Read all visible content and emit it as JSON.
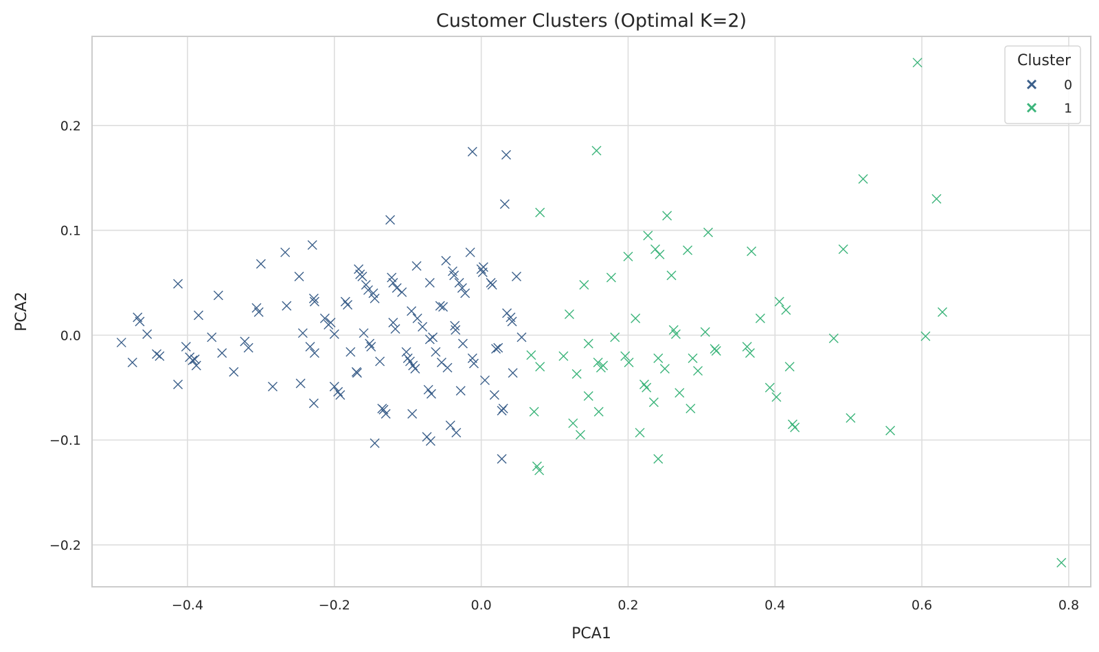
{
  "chart_data": {
    "type": "scatter",
    "title": "Customer Clusters (Optimal K=2)",
    "xlabel": "PCA1",
    "ylabel": "PCA2",
    "xlim": [
      -0.53,
      0.83
    ],
    "ylim": [
      -0.24,
      0.285
    ],
    "x_ticks": [
      -0.4,
      -0.2,
      0.0,
      0.2,
      0.4,
      0.6,
      0.8
    ],
    "x_tick_labels": [
      "−0.4",
      "−0.2",
      "0.0",
      "0.2",
      "0.4",
      "0.6",
      "0.8"
    ],
    "y_ticks": [
      -0.2,
      -0.1,
      0.0,
      0.1,
      0.2
    ],
    "y_tick_labels": [
      "−0.2",
      "−0.1",
      "0.0",
      "0.1",
      "0.2"
    ],
    "grid": true,
    "marker": "x",
    "legend": {
      "title": "Cluster",
      "placement": "top-right"
    },
    "series": [
      {
        "name": "0",
        "color": "#3b5f8a",
        "points": [
          [
            -0.49,
            -0.007
          ],
          [
            -0.475,
            -0.026
          ],
          [
            -0.468,
            0.017
          ],
          [
            -0.465,
            0.013
          ],
          [
            -0.455,
            0.001
          ],
          [
            -0.442,
            -0.018
          ],
          [
            -0.438,
            -0.02
          ],
          [
            -0.413,
            0.049
          ],
          [
            -0.413,
            -0.047
          ],
          [
            -0.402,
            -0.011
          ],
          [
            -0.397,
            -0.021
          ],
          [
            -0.393,
            -0.024
          ],
          [
            -0.39,
            -0.023
          ],
          [
            -0.388,
            -0.029
          ],
          [
            -0.385,
            0.019
          ],
          [
            -0.367,
            -0.002
          ],
          [
            -0.358,
            0.038
          ],
          [
            -0.353,
            -0.017
          ],
          [
            -0.337,
            -0.035
          ],
          [
            -0.322,
            -0.006
          ],
          [
            -0.317,
            -0.012
          ],
          [
            -0.306,
            0.026
          ],
          [
            -0.303,
            0.022
          ],
          [
            -0.3,
            0.068
          ],
          [
            -0.284,
            -0.049
          ],
          [
            -0.267,
            0.079
          ],
          [
            -0.265,
            0.028
          ],
          [
            -0.248,
            0.056
          ],
          [
            -0.246,
            -0.046
          ],
          [
            -0.243,
            0.002
          ],
          [
            -0.233,
            -0.011
          ],
          [
            -0.23,
            0.086
          ],
          [
            -0.228,
            0.035
          ],
          [
            -0.227,
            0.032
          ],
          [
            -0.227,
            -0.017
          ],
          [
            -0.228,
            -0.065
          ],
          [
            -0.213,
            0.016
          ],
          [
            -0.208,
            0.01
          ],
          [
            -0.205,
            0.012
          ],
          [
            -0.2,
            0.001
          ],
          [
            -0.2,
            -0.049
          ],
          [
            -0.195,
            -0.054
          ],
          [
            -0.192,
            -0.057
          ],
          [
            -0.185,
            0.032
          ],
          [
            -0.182,
            0.029
          ],
          [
            -0.178,
            -0.016
          ],
          [
            -0.17,
            -0.035
          ],
          [
            -0.169,
            -0.036
          ],
          [
            -0.167,
            0.063
          ],
          [
            -0.165,
            0.058
          ],
          [
            -0.162,
            0.056
          ],
          [
            -0.16,
            0.002
          ],
          [
            -0.157,
            0.048
          ],
          [
            -0.154,
            0.043
          ],
          [
            -0.152,
            -0.008
          ],
          [
            -0.15,
            -0.011
          ],
          [
            -0.147,
            0.04
          ],
          [
            -0.145,
            0.035
          ],
          [
            -0.145,
            -0.103
          ],
          [
            -0.138,
            -0.025
          ],
          [
            -0.135,
            -0.07
          ],
          [
            -0.133,
            -0.071
          ],
          [
            -0.13,
            -0.075
          ],
          [
            -0.124,
            0.11
          ],
          [
            -0.122,
            0.055
          ],
          [
            -0.12,
            0.05
          ],
          [
            -0.12,
            0.012
          ],
          [
            -0.117,
            0.006
          ],
          [
            -0.115,
            0.045
          ],
          [
            -0.108,
            0.041
          ],
          [
            -0.102,
            -0.016
          ],
          [
            -0.1,
            -0.022
          ],
          [
            -0.097,
            -0.025
          ],
          [
            -0.095,
            0.023
          ],
          [
            -0.094,
            -0.075
          ],
          [
            -0.093,
            -0.029
          ],
          [
            -0.09,
            -0.032
          ],
          [
            -0.088,
            0.066
          ],
          [
            -0.087,
            0.016
          ],
          [
            -0.08,
            0.008
          ],
          [
            -0.074,
            -0.097
          ],
          [
            -0.072,
            -0.052
          ],
          [
            -0.07,
            0.05
          ],
          [
            -0.07,
            -0.004
          ],
          [
            -0.069,
            -0.101
          ],
          [
            -0.068,
            -0.056
          ],
          [
            -0.066,
            -0.002
          ],
          [
            -0.062,
            -0.016
          ],
          [
            -0.056,
            0.028
          ],
          [
            -0.054,
            -0.026
          ],
          [
            -0.052,
            0.027
          ],
          [
            -0.048,
            0.071
          ],
          [
            -0.046,
            -0.031
          ],
          [
            -0.042,
            -0.086
          ],
          [
            -0.039,
            0.061
          ],
          [
            -0.037,
            0.057
          ],
          [
            -0.036,
            0.009
          ],
          [
            -0.035,
            0.005
          ],
          [
            -0.034,
            -0.093
          ],
          [
            -0.03,
            0.05
          ],
          [
            -0.028,
            -0.053
          ],
          [
            -0.026,
            0.045
          ],
          [
            -0.025,
            -0.008
          ],
          [
            -0.022,
            0.04
          ],
          [
            -0.015,
            0.079
          ],
          [
            -0.012,
            -0.022
          ],
          [
            -0.01,
            -0.027
          ],
          [
            0.0,
            0.063
          ],
          [
            0.002,
            0.06
          ],
          [
            0.003,
            0.065
          ],
          [
            0.005,
            -0.043
          ],
          [
            0.013,
            0.05
          ],
          [
            0.015,
            0.048
          ],
          [
            0.018,
            -0.057
          ],
          [
            0.02,
            -0.013
          ],
          [
            0.023,
            -0.012
          ],
          [
            0.028,
            -0.118
          ],
          [
            0.028,
            -0.072
          ],
          [
            0.03,
            -0.07
          ],
          [
            0.032,
            0.125
          ],
          [
            0.035,
            0.021
          ],
          [
            0.04,
            0.017
          ],
          [
            0.042,
            0.013
          ],
          [
            0.043,
            -0.036
          ],
          [
            0.048,
            0.056
          ],
          [
            0.055,
            -0.002
          ],
          [
            -0.012,
            0.175
          ],
          [
            0.034,
            0.172
          ]
        ]
      },
      {
        "name": "1",
        "color": "#3bb47a",
        "points": [
          [
            0.068,
            -0.019
          ],
          [
            0.072,
            -0.073
          ],
          [
            0.076,
            -0.125
          ],
          [
            0.079,
            -0.129
          ],
          [
            0.08,
            0.117
          ],
          [
            0.08,
            -0.03
          ],
          [
            0.112,
            -0.02
          ],
          [
            0.12,
            0.02
          ],
          [
            0.125,
            -0.084
          ],
          [
            0.13,
            -0.037
          ],
          [
            0.135,
            -0.095
          ],
          [
            0.14,
            0.048
          ],
          [
            0.146,
            -0.008
          ],
          [
            0.146,
            -0.058
          ],
          [
            0.157,
            0.176
          ],
          [
            0.159,
            -0.026
          ],
          [
            0.16,
            -0.073
          ],
          [
            0.163,
            -0.031
          ],
          [
            0.166,
            -0.029
          ],
          [
            0.177,
            0.055
          ],
          [
            0.182,
            -0.002
          ],
          [
            0.196,
            -0.02
          ],
          [
            0.2,
            0.075
          ],
          [
            0.201,
            -0.026
          ],
          [
            0.21,
            0.016
          ],
          [
            0.216,
            -0.093
          ],
          [
            0.222,
            -0.047
          ],
          [
            0.225,
            -0.05
          ],
          [
            0.227,
            0.095
          ],
          [
            0.235,
            -0.064
          ],
          [
            0.237,
            0.082
          ],
          [
            0.241,
            -0.022
          ],
          [
            0.241,
            -0.118
          ],
          [
            0.243,
            0.077
          ],
          [
            0.25,
            -0.032
          ],
          [
            0.253,
            0.114
          ],
          [
            0.259,
            0.057
          ],
          [
            0.262,
            0.005
          ],
          [
            0.265,
            0.001
          ],
          [
            0.27,
            -0.055
          ],
          [
            0.281,
            0.081
          ],
          [
            0.285,
            -0.07
          ],
          [
            0.288,
            -0.022
          ],
          [
            0.295,
            -0.034
          ],
          [
            0.305,
            0.003
          ],
          [
            0.309,
            0.098
          ],
          [
            0.318,
            -0.013
          ],
          [
            0.32,
            -0.015
          ],
          [
            0.362,
            -0.011
          ],
          [
            0.366,
            -0.017
          ],
          [
            0.368,
            0.08
          ],
          [
            0.38,
            0.016
          ],
          [
            0.393,
            -0.05
          ],
          [
            0.402,
            -0.059
          ],
          [
            0.406,
            0.032
          ],
          [
            0.415,
            0.024
          ],
          [
            0.42,
            -0.03
          ],
          [
            0.424,
            -0.085
          ],
          [
            0.427,
            -0.088
          ],
          [
            0.48,
            -0.003
          ],
          [
            0.493,
            0.082
          ],
          [
            0.503,
            -0.079
          ],
          [
            0.52,
            0.149
          ],
          [
            0.557,
            -0.091
          ],
          [
            0.594,
            0.26
          ],
          [
            0.605,
            -0.001
          ],
          [
            0.62,
            0.13
          ],
          [
            0.628,
            0.022
          ],
          [
            0.79,
            -0.217
          ]
        ]
      }
    ]
  }
}
